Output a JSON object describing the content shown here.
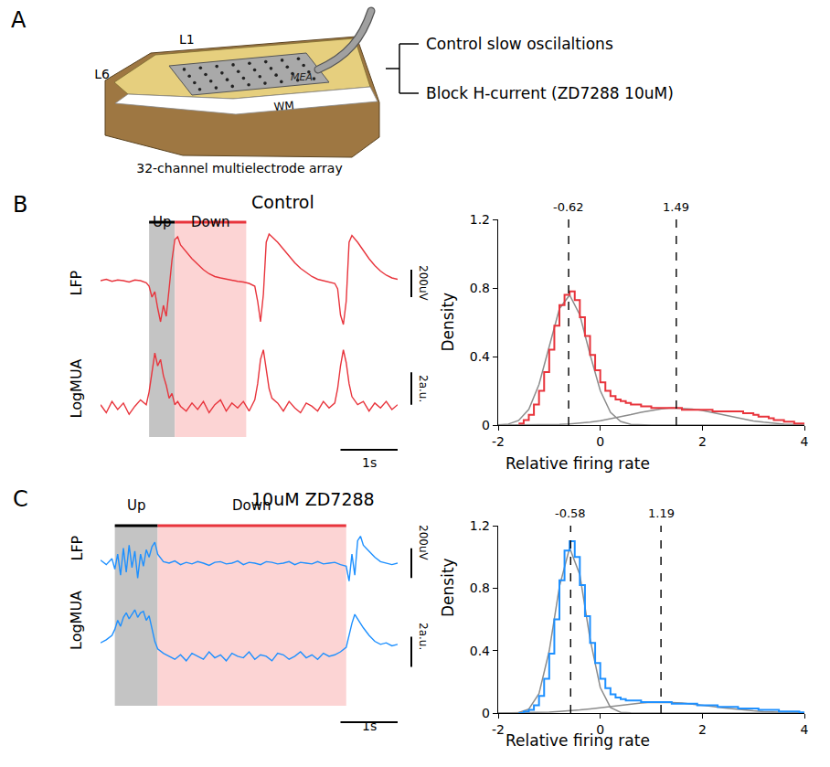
{
  "panel_A": {
    "letter": "A",
    "labels": {
      "top_layer": "L1",
      "bottom_layer": "L6",
      "array": "MEA",
      "white_matter": "WM"
    },
    "caption": "32-channel multielectrode array",
    "conditions": [
      "Control slow oscilaltions",
      "Block H-current (ZD7288 10uM)"
    ]
  },
  "chart_data": [
    {
      "type": "line",
      "panel": "B",
      "title": "Control",
      "color": "#e8343c",
      "xlim": [
        0,
        5.2
      ],
      "states": [
        {
          "label": "Up",
          "start": 0.85,
          "end": 1.3,
          "color": "#000000",
          "shade": "#c4c4c4"
        },
        {
          "label": "Down",
          "start": 1.3,
          "end": 2.55,
          "color": "#e8343c",
          "shade": "#fcd4d4"
        }
      ],
      "series": [
        {
          "name": "LFP",
          "ylim": [
            -420,
            380
          ],
          "t": [
            0,
            0.1,
            0.2,
            0.3,
            0.4,
            0.5,
            0.6,
            0.7,
            0.8,
            0.85,
            0.9,
            0.95,
            1.0,
            1.05,
            1.1,
            1.15,
            1.2,
            1.25,
            1.3,
            1.35,
            1.4,
            1.5,
            1.6,
            1.7,
            1.8,
            1.9,
            2.0,
            2.1,
            2.2,
            2.3,
            2.4,
            2.5,
            2.6,
            2.7,
            2.75,
            2.8,
            2.85,
            2.9,
            2.95,
            3.0,
            3.1,
            3.2,
            3.3,
            3.4,
            3.5,
            3.6,
            3.7,
            3.8,
            3.9,
            4.0,
            4.1,
            4.15,
            4.2,
            4.25,
            4.3,
            4.35,
            4.4,
            4.5,
            4.6,
            4.7,
            4.8,
            4.9,
            5.0,
            5.1,
            5.2
          ],
          "values": [
            0,
            10,
            -5,
            5,
            0,
            -10,
            5,
            0,
            -15,
            -40,
            -120,
            -80,
            -200,
            -300,
            -180,
            -260,
            -60,
            150,
            300,
            320,
            260,
            210,
            160,
            120,
            80,
            50,
            30,
            20,
            10,
            5,
            -5,
            -10,
            -20,
            -40,
            -150,
            -300,
            -100,
            280,
            340,
            320,
            280,
            230,
            180,
            130,
            90,
            60,
            30,
            10,
            0,
            -10,
            -20,
            -60,
            -250,
            -320,
            -150,
            280,
            330,
            280,
            220,
            160,
            110,
            70,
            40,
            20,
            10
          ]
        },
        {
          "name": "LogMUA",
          "ylim": [
            -1.8,
            4.2
          ],
          "t": [
            0,
            0.1,
            0.2,
            0.3,
            0.4,
            0.5,
            0.6,
            0.7,
            0.8,
            0.85,
            0.9,
            0.95,
            1.0,
            1.05,
            1.1,
            1.15,
            1.2,
            1.25,
            1.3,
            1.35,
            1.4,
            1.5,
            1.6,
            1.7,
            1.8,
            1.9,
            2.0,
            2.1,
            2.2,
            2.3,
            2.4,
            2.5,
            2.6,
            2.7,
            2.75,
            2.8,
            2.85,
            2.9,
            2.95,
            3.0,
            3.1,
            3.2,
            3.3,
            3.4,
            3.5,
            3.6,
            3.7,
            3.8,
            3.9,
            4.0,
            4.1,
            4.15,
            4.2,
            4.25,
            4.3,
            4.35,
            4.4,
            4.5,
            4.6,
            4.7,
            4.8,
            4.9,
            5.0,
            5.1,
            5.2
          ],
          "values": [
            0.2,
            -0.3,
            0.4,
            -0.1,
            0.3,
            -0.4,
            0.1,
            0.5,
            0.2,
            1.0,
            2.2,
            3.4,
            2.6,
            3.0,
            2.0,
            1.4,
            0.6,
            0.9,
            0.2,
            0.4,
            0.1,
            -0.2,
            0.3,
            -0.1,
            0.4,
            -0.3,
            0.2,
            0.5,
            -0.2,
            0.3,
            0.0,
            0.4,
            -0.2,
            0.5,
            1.5,
            3.0,
            3.6,
            2.4,
            1.2,
            0.6,
            0.3,
            -0.2,
            0.4,
            0.0,
            -0.3,
            0.3,
            0.1,
            -0.2,
            0.4,
            0.0,
            0.3,
            1.2,
            2.6,
            3.6,
            2.8,
            1.5,
            0.7,
            0.2,
            0.4,
            -0.2,
            0.3,
            0.0,
            0.4,
            -0.1,
            0.2
          ]
        }
      ],
      "scale_bars": [
        {
          "series": "LFP",
          "value": 200,
          "label": "200uV"
        },
        {
          "series": "LogMUA",
          "value": 2,
          "label": "2a.u."
        },
        {
          "axis": "x",
          "value": 1,
          "label": "1s"
        }
      ]
    },
    {
      "type": "histogram",
      "panel": "B",
      "color": "#e8343c",
      "x_label": "Relative firing rate",
      "y_label": "Density",
      "xlim": [
        -2,
        4
      ],
      "xticks": [
        -2,
        0,
        2,
        4
      ],
      "ylim": [
        0,
        1.2
      ],
      "yticks": [
        0,
        0.4,
        0.8,
        1.2
      ],
      "bins": [
        -1.6,
        -1.5,
        -1.4,
        -1.3,
        -1.2,
        -1.1,
        -1.0,
        -0.9,
        -0.8,
        -0.7,
        -0.6,
        -0.5,
        -0.4,
        -0.3,
        -0.2,
        -0.1,
        0,
        0.1,
        0.2,
        0.3,
        0.4,
        0.5,
        0.6,
        0.7,
        0.8,
        0.9,
        1.0,
        1.1,
        1.2,
        1.3,
        1.4,
        1.5,
        1.6,
        1.7,
        1.8,
        1.9,
        2.0,
        2.1,
        2.2,
        2.3,
        2.4,
        2.5,
        2.6,
        2.7,
        2.8,
        2.9,
        3.0,
        3.1,
        3.2,
        3.3,
        3.4,
        3.5,
        3.6,
        3.7,
        3.8,
        3.9,
        4.0
      ],
      "values": [
        0.01,
        0.03,
        0.06,
        0.12,
        0.2,
        0.31,
        0.44,
        0.58,
        0.7,
        0.76,
        0.78,
        0.73,
        0.63,
        0.52,
        0.41,
        0.32,
        0.25,
        0.2,
        0.17,
        0.15,
        0.14,
        0.13,
        0.12,
        0.12,
        0.11,
        0.11,
        0.1,
        0.1,
        0.1,
        0.1,
        0.1,
        0.1,
        0.09,
        0.09,
        0.09,
        0.09,
        0.09,
        0.09,
        0.08,
        0.08,
        0.08,
        0.08,
        0.08,
        0.08,
        0.07,
        0.07,
        0.06,
        0.05,
        0.05,
        0.04,
        0.03,
        0.03,
        0.02,
        0.02,
        0.01,
        0.01
      ],
      "fit": {
        "color": "#8c8c8c",
        "x": [
          -2,
          -1.8,
          -1.6,
          -1.4,
          -1.2,
          -1.0,
          -0.8,
          -0.6,
          -0.4,
          -0.2,
          0,
          0.2,
          0.4,
          0.6,
          0.8,
          1.0,
          1.2,
          1.4,
          1.6,
          1.8,
          2.0,
          2.2,
          2.4,
          2.6,
          2.8,
          3.0,
          3.2,
          3.4,
          3.6,
          3.8,
          4.0
        ],
        "components": [
          [
            0.001,
            0.006,
            0.027,
            0.092,
            0.237,
            0.461,
            0.679,
            0.759,
            0.643,
            0.412,
            0.201,
            0.074,
            0.021,
            0.004,
            0.001,
            0,
            0,
            0,
            0,
            0,
            0,
            0,
            0,
            0,
            0,
            0,
            0,
            0,
            0,
            0,
            0
          ],
          [
            0,
            0,
            0,
            0.001,
            0.001,
            0.002,
            0.004,
            0.007,
            0.011,
            0.017,
            0.025,
            0.036,
            0.048,
            0.061,
            0.075,
            0.086,
            0.095,
            0.1,
            0.099,
            0.094,
            0.085,
            0.073,
            0.06,
            0.047,
            0.035,
            0.024,
            0.017,
            0.011,
            0.006,
            0.004,
            0.002
          ]
        ]
      },
      "peaks": [
        -0.62,
        1.49
      ]
    },
    {
      "type": "line",
      "panel": "C",
      "title": "10uM ZD7288",
      "color": "#1e90ff",
      "xlim": [
        0,
        5.2
      ],
      "states": [
        {
          "label": "Up",
          "start": 0.25,
          "end": 1.0,
          "color": "#000000",
          "shade": "#c4c4c4"
        },
        {
          "label": "Down",
          "start": 1.0,
          "end": 4.3,
          "color": "#e8343c",
          "shade": "#fcd4d4"
        }
      ],
      "series": [
        {
          "name": "LFP",
          "ylim": [
            -220,
            220
          ],
          "t": [
            0,
            0.1,
            0.2,
            0.25,
            0.3,
            0.35,
            0.4,
            0.45,
            0.5,
            0.55,
            0.6,
            0.65,
            0.7,
            0.75,
            0.8,
            0.85,
            0.9,
            0.95,
            1.0,
            1.1,
            1.2,
            1.3,
            1.4,
            1.5,
            1.6,
            1.7,
            1.8,
            1.9,
            2.0,
            2.1,
            2.2,
            2.3,
            2.4,
            2.5,
            2.6,
            2.7,
            2.8,
            2.9,
            3.0,
            3.1,
            3.2,
            3.3,
            3.4,
            3.5,
            3.6,
            3.7,
            3.8,
            3.9,
            4.0,
            4.1,
            4.2,
            4.3,
            4.35,
            4.4,
            4.45,
            4.5,
            4.55,
            4.6,
            4.7,
            4.8,
            4.9,
            5.0,
            5.1,
            5.2
          ],
          "values": [
            20,
            -10,
            30,
            -40,
            60,
            -80,
            100,
            -60,
            120,
            -30,
            80,
            -100,
            60,
            -20,
            90,
            40,
            110,
            140,
            60,
            10,
            0,
            15,
            -10,
            5,
            -5,
            10,
            0,
            -15,
            5,
            10,
            -5,
            0,
            15,
            -10,
            5,
            0,
            -10,
            10,
            5,
            -5,
            0,
            10,
            -10,
            5,
            0,
            -5,
            10,
            -5,
            0,
            5,
            -10,
            -20,
            -120,
            60,
            -80,
            150,
            180,
            120,
            80,
            40,
            10,
            0,
            -10,
            0
          ]
        },
        {
          "name": "LogMUA",
          "ylim": [
            -3.3,
            3.9
          ],
          "t": [
            0,
            0.1,
            0.2,
            0.25,
            0.3,
            0.35,
            0.4,
            0.45,
            0.5,
            0.55,
            0.6,
            0.65,
            0.7,
            0.75,
            0.8,
            0.85,
            0.9,
            0.95,
            1.0,
            1.1,
            1.2,
            1.3,
            1.4,
            1.5,
            1.6,
            1.7,
            1.8,
            1.9,
            2.0,
            2.1,
            2.2,
            2.3,
            2.4,
            2.5,
            2.6,
            2.7,
            2.8,
            2.9,
            3.0,
            3.1,
            3.2,
            3.3,
            3.4,
            3.5,
            3.6,
            3.7,
            3.8,
            3.9,
            4.0,
            4.1,
            4.2,
            4.3,
            4.35,
            4.4,
            4.45,
            4.5,
            4.55,
            4.6,
            4.7,
            4.8,
            4.9,
            5.0,
            5.1,
            5.2
          ],
          "values": [
            0.9,
            1.1,
            1.4,
            1.8,
            2.4,
            2.0,
            2.6,
            2.9,
            2.5,
            2.8,
            3.1,
            2.6,
            2.9,
            3.0,
            2.4,
            2.7,
            1.8,
            1.0,
            0.5,
            0.2,
            0.0,
            -0.2,
            0.1,
            -0.3,
            0.2,
            0.0,
            -0.2,
            0.3,
            -0.1,
            0.1,
            -0.3,
            0.2,
            0.0,
            -0.1,
            0.3,
            -0.2,
            0.1,
            0.0,
            -0.3,
            0.2,
            0.1,
            -0.2,
            0.0,
            0.3,
            -0.1,
            0.1,
            -0.2,
            0.2,
            0.0,
            0.1,
            0.3,
            0.6,
            1.4,
            2.2,
            2.8,
            2.5,
            2.2,
            1.9,
            1.4,
            1.0,
            0.8,
            0.9,
            0.7,
            0.8
          ]
        }
      ],
      "scale_bars": [
        {
          "series": "LFP",
          "value": 200,
          "label": "200uV"
        },
        {
          "series": "LogMUA",
          "value": 2,
          "label": "2a.u."
        },
        {
          "axis": "x",
          "value": 1,
          "label": "1s"
        }
      ]
    },
    {
      "type": "histogram",
      "panel": "C",
      "color": "#1e90ff",
      "x_label": "Relative firing rate",
      "y_label": "Density",
      "xlim": [
        -2,
        4
      ],
      "xticks": [
        -2,
        0,
        2,
        4
      ],
      "ylim": [
        0,
        1.2
      ],
      "yticks": [
        0,
        0.4,
        0.8,
        1.2
      ],
      "bins": [
        -1.6,
        -1.5,
        -1.4,
        -1.3,
        -1.2,
        -1.1,
        -1.0,
        -0.9,
        -0.8,
        -0.7,
        -0.6,
        -0.5,
        -0.4,
        -0.3,
        -0.2,
        -0.1,
        0,
        0.1,
        0.2,
        0.3,
        0.4,
        0.5,
        0.6,
        0.7,
        0.8,
        0.9,
        1.0,
        1.1,
        1.2,
        1.3,
        1.4,
        1.5,
        1.6,
        1.7,
        1.8,
        1.9,
        2.0,
        2.1,
        2.2,
        2.3,
        2.4,
        2.5,
        2.6,
        2.7,
        2.8,
        2.9,
        3.0,
        3.1,
        3.2,
        3.3,
        3.4,
        3.5,
        3.6,
        3.7,
        3.8,
        3.9,
        4.0
      ],
      "values": [
        0,
        0.01,
        0.02,
        0.05,
        0.11,
        0.22,
        0.38,
        0.6,
        0.85,
        1.04,
        1.1,
        1.0,
        0.82,
        0.62,
        0.45,
        0.32,
        0.22,
        0.16,
        0.12,
        0.1,
        0.09,
        0.08,
        0.08,
        0.08,
        0.07,
        0.07,
        0.07,
        0.07,
        0.07,
        0.07,
        0.06,
        0.06,
        0.06,
        0.06,
        0.06,
        0.05,
        0.05,
        0.05,
        0.05,
        0.04,
        0.04,
        0.04,
        0.04,
        0.03,
        0.03,
        0.03,
        0.03,
        0.02,
        0.02,
        0.02,
        0.02,
        0.01,
        0.01,
        0.01,
        0.01,
        0.005
      ],
      "fit": {
        "color": "#8c8c8c",
        "x": [
          -2,
          -1.8,
          -1.6,
          -1.4,
          -1.2,
          -1.0,
          -0.8,
          -0.6,
          -0.4,
          -0.2,
          0,
          0.2,
          0.4,
          0.6,
          0.8,
          1.0,
          1.2,
          1.4,
          1.6,
          1.8,
          2.0,
          2.2,
          2.4,
          2.6,
          2.8,
          3.0,
          3.2,
          3.4,
          3.6,
          3.8,
          4.0
        ],
        "components": [
          [
            0,
            0,
            0.003,
            0.025,
            0.125,
            0.398,
            0.81,
            1.058,
            0.885,
            0.475,
            0.164,
            0.036,
            0.005,
            0.001,
            0,
            0,
            0,
            0,
            0,
            0,
            0,
            0,
            0,
            0,
            0,
            0,
            0,
            0,
            0,
            0,
            0
          ],
          [
            0,
            0.001,
            0.001,
            0.002,
            0.004,
            0.006,
            0.01,
            0.014,
            0.02,
            0.027,
            0.035,
            0.043,
            0.051,
            0.059,
            0.065,
            0.069,
            0.07,
            0.068,
            0.064,
            0.058,
            0.05,
            0.042,
            0.034,
            0.026,
            0.019,
            0.014,
            0.009,
            0.006,
            0.004,
            0.002,
            0.001
          ]
        ]
      },
      "peaks": [
        -0.58,
        1.19
      ]
    }
  ]
}
